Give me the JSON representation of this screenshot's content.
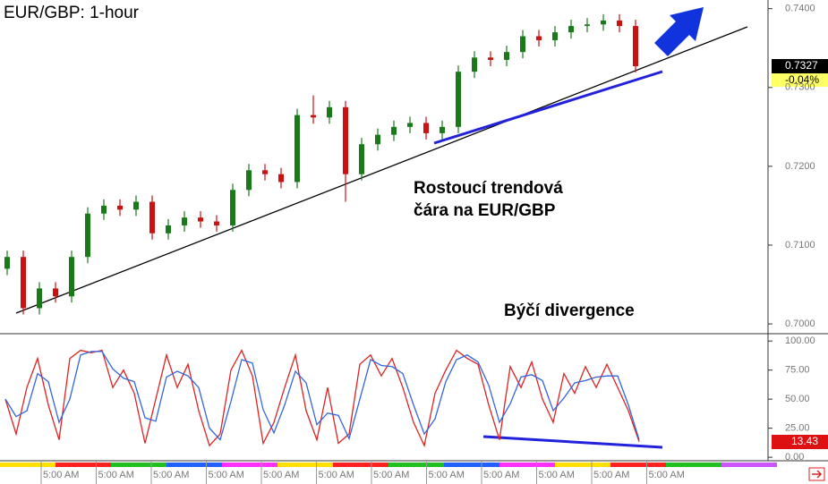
{
  "chart_data": {
    "type": "candlestick",
    "title": "EUR/GBP: 1-hour",
    "annotations": [
      "Rostoucí trendová",
      "čára na EUR/GBP",
      "Býčí divergence"
    ],
    "last_price_label": "0.7327",
    "change_label": "-0.04%",
    "open": [
      0.707,
      0.7085,
      0.702,
      0.7045,
      0.7035,
      0.7085,
      0.714,
      0.715,
      0.7145,
      0.7155,
      0.7115,
      0.7125,
      0.7135,
      0.713,
      0.7125,
      0.717,
      0.7195,
      0.719,
      0.718,
      0.7265,
      0.7262,
      0.7275,
      0.719,
      0.7228,
      0.724,
      0.725,
      0.7255,
      0.7242,
      0.725,
      0.732,
      0.7338,
      0.7335,
      0.7345,
      0.7365,
      0.736,
      0.737,
      0.7378,
      0.738,
      0.7385,
      0.7378
    ],
    "high": [
      0.7093,
      0.7093,
      0.7053,
      0.7053,
      0.7093,
      0.7148,
      0.7158,
      0.7158,
      0.7163,
      0.7163,
      0.7133,
      0.7143,
      0.7143,
      0.7138,
      0.7178,
      0.7203,
      0.7203,
      0.7198,
      0.7273,
      0.729,
      0.7283,
      0.7283,
      0.7236,
      0.7248,
      0.7258,
      0.7263,
      0.7263,
      0.7258,
      0.7328,
      0.7346,
      0.7346,
      0.7353,
      0.7373,
      0.7373,
      0.7378,
      0.7386,
      0.7388,
      0.7393,
      0.7393,
      0.7386
    ],
    "low": [
      0.7062,
      0.7012,
      0.7012,
      0.7027,
      0.7027,
      0.7077,
      0.7132,
      0.7137,
      0.7137,
      0.7107,
      0.7107,
      0.7117,
      0.7122,
      0.7117,
      0.7117,
      0.7162,
      0.7182,
      0.7172,
      0.7172,
      0.7254,
      0.7254,
      0.7155,
      0.7182,
      0.722,
      0.7232,
      0.7242,
      0.7234,
      0.7234,
      0.7242,
      0.7312,
      0.7327,
      0.7327,
      0.7337,
      0.7352,
      0.7352,
      0.7362,
      0.737,
      0.7372,
      0.737,
      0.7319
    ],
    "close": [
      0.7085,
      0.702,
      0.7045,
      0.7035,
      0.7085,
      0.714,
      0.715,
      0.7145,
      0.7155,
      0.7115,
      0.7125,
      0.7135,
      0.713,
      0.7125,
      0.717,
      0.7195,
      0.719,
      0.718,
      0.7265,
      0.7262,
      0.7275,
      0.719,
      0.7228,
      0.724,
      0.725,
      0.7255,
      0.7242,
      0.725,
      0.732,
      0.7338,
      0.7335,
      0.7345,
      0.7365,
      0.736,
      0.737,
      0.7378,
      0.738,
      0.7385,
      0.7378,
      0.7327
    ],
    "up_color": "#1a7a1a",
    "down_color": "#cc1111",
    "ylim": [
      0.6991,
      0.7411
    ],
    "yticks": [
      {
        "value": 0.74,
        "label": "0.7400"
      },
      {
        "value": 0.73,
        "label": "0.7300"
      },
      {
        "value": 0.72,
        "label": "0.7200"
      },
      {
        "value": 0.71,
        "label": "0.7100"
      },
      {
        "value": 0.7,
        "label": "0.7000"
      }
    ],
    "x_labels": [
      "5:00 AM",
      "5:00 AM",
      "5:00 AM",
      "5:00 AM",
      "5:00 AM",
      "5:00 AM",
      "5:00 AM",
      "5:00 AM",
      "5:00 AM",
      "5:00 AM",
      "5:00 AM",
      "5:00 AM"
    ],
    "oscillator": {
      "last_label": "13.43",
      "y2lim": [
        -3,
        104
      ],
      "y2ticks": [
        {
          "value": 100,
          "label": "100.00"
        },
        {
          "value": 75,
          "label": "75.00"
        },
        {
          "value": 50,
          "label": "50.00"
        },
        {
          "value": 25,
          "label": "25.00"
        },
        {
          "value": 0,
          "label": "0.00"
        }
      ],
      "series": [
        {
          "color": "#dd2222",
          "values": [
            50,
            20,
            60,
            85,
            45,
            15,
            85,
            92,
            90,
            92,
            60,
            75,
            55,
            12,
            50,
            88,
            60,
            80,
            40,
            10,
            20,
            75,
            92,
            70,
            12,
            30,
            60,
            88,
            40,
            15,
            60,
            12,
            20,
            80,
            88,
            70,
            85,
            60,
            30,
            10,
            55,
            75,
            92,
            85,
            80,
            45,
            15,
            78,
            60,
            82,
            50,
            30,
            72,
            55,
            78,
            60,
            80,
            60,
            40,
            13.43
          ]
        },
        {
          "color": "#3366dd",
          "values": [
            50,
            35,
            40,
            72,
            65,
            30,
            50,
            88,
            91,
            91,
            76,
            68,
            65,
            34,
            31,
            69,
            74,
            70,
            60,
            25,
            15,
            48,
            84,
            81,
            41,
            21,
            45,
            74,
            64,
            28,
            38,
            36,
            16,
            50,
            84,
            79,
            78,
            72,
            45,
            20,
            33,
            65,
            84,
            88,
            82,
            62,
            30,
            46,
            69,
            71,
            66,
            40,
            51,
            64,
            66,
            69,
            70,
            70,
            45,
            15
          ]
        }
      ]
    }
  }
}
